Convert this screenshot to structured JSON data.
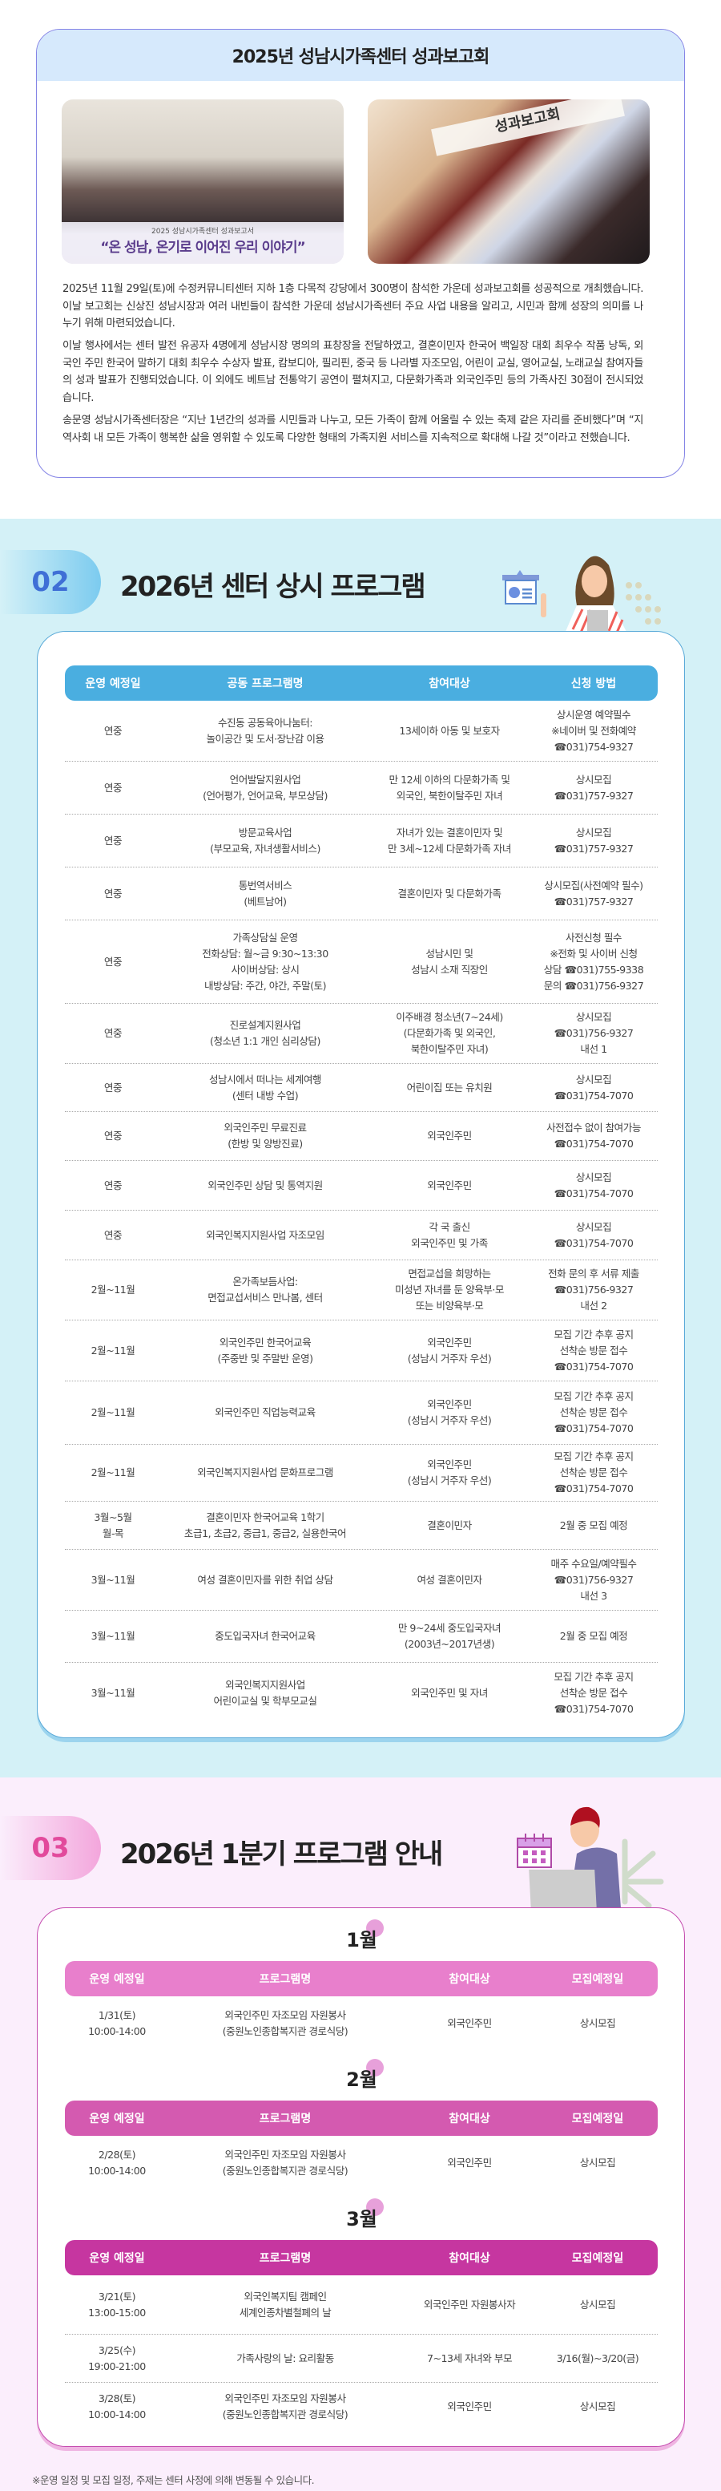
{
  "report": {
    "title": "2025년 성남시가족센터 성과보고회",
    "photo1_banner_small": "2025 성남시가족센터 성과보고서",
    "photo1_banner": "“온 성남, 온기로 이어진 우리 이야기”",
    "photo2_banner": "성과보고회",
    "paragraphs": [
      "2025년 11월 29일(토)에 수정커뮤니티센터 지하 1층 다목적 강당에서 300명이 참석한 가운데 성과보고회를 성공적으로 개최했습니다. 이날 보고회는 신상진 성남시장과 여러 내빈들이 참석한 가운데 성남시가족센터 주요 사업 내용을 알리고, 시민과 함께 성장의 의미를 나누기 위해 마련되었습니다.",
      "이날 행사에서는 센터 발전 유공자 4명에게 성남시장 명의의 표창장을 전달하였고, 결혼이민자 한국어 백일장 대회 최우수 작품 낭독, 외국인 주민 한국어 말하기 대회 최우수 수상자 발표, 캄보디아, 필리핀, 중국 등 나라별 자조모임, 어린이 교실, 영어교실, 노래교실 참여자들의 성과 발표가 진행되었습니다. 이 외에도 베트남 전통악기 공연이 펼쳐지고, 다문화가족과 외국인주민 등의 가족사진 30점이 전시되었습니다.",
      "송문영 성남시가족센터장은 “지난 1년간의 성과를 시민들과 나누고, 모든 가족이 함께 어울릴 수 있는 축제 같은 자리를 준비했다”며 “지역사회 내 모든 가족이 행복한 삶을 영위할 수 있도록 다양한 형태의 가족지원 서비스를 지속적으로 확대해 나갈 것”이라고 전했습니다."
    ]
  },
  "section2": {
    "number": "02",
    "title": "2026년 센터 상시 프로그램",
    "icon": "presentation-board-icon",
    "header_color": "#4aaee0",
    "headers": [
      "운영 예정일",
      "공동 프로그램명",
      "참여대상",
      "신청 방법"
    ],
    "rows": [
      [
        "연중",
        "수진동 공동육아나눔터:\n놀이공간 및 도서·장난감 이용",
        "13세이하 아동 및 보호자",
        "상시운영 예약필수\n※네이버 및 전화예약\n☎031)754-9327"
      ],
      [
        "연중",
        "언어발달지원사업\n(언어평가, 언어교육, 부모상담)",
        "만 12세 이하의 다문화가족 및\n외국인, 북한이탈주민 자녀",
        "상시모집\n☎031)757-9327"
      ],
      [
        "연중",
        "방문교육사업\n(부모교육, 자녀생활서비스)",
        "자녀가 있는 결혼이민자 및\n만 3세~12세 다문화가족 자녀",
        "상시모집\n☎031)757-9327"
      ],
      [
        "연중",
        "통번역서비스\n(베트남어)",
        "결혼이민자 및 다문화가족",
        "상시모집(사전예약 필수)\n☎031)757-9327"
      ],
      [
        "연중",
        "가족상담실 운영\n전화상담: 월~금 9:30~13:30\n사이버상담: 상시\n내방상담: 주간, 야간, 주말(토)",
        "성남시민 및\n성남시 소재 직장인",
        "사전신청 필수\n※전화 및 사이버 신청\n상담 ☎031)755-9338\n문의 ☎031)756-9327"
      ],
      [
        "연중",
        "진로설계지원사업\n(청소년 1:1 개인 심리상담)",
        "이주배경 청소년(7~24세)\n(다문화가족 및 외국인,\n북한이탈주민 자녀)",
        "상시모집\n☎031)756-9327\n내선 1"
      ],
      [
        "연중",
        "성남시에서 떠나는 세계여행\n(센터 내방 수업)",
        "어린이집 또는 유치원",
        "상시모집\n☎031)754-7070"
      ],
      [
        "연중",
        "외국인주민 무료진료\n(한방 및 양방진료)",
        "외국인주민",
        "사전접수 없이 참여가능\n☎031)754-7070"
      ],
      [
        "연중",
        "외국인주민 상담 및 통역지원",
        "외국인주민",
        "상시모집\n☎031)754-7070"
      ],
      [
        "연중",
        "외국인복지지원사업 자조모임",
        "각 국 출신\n외국인주민 및 가족",
        "상시모집\n☎031)754-7070"
      ],
      [
        "2월~11월",
        "온가족보듬사업:\n면접교섭서비스 만나봄, 센터",
        "면접교섭을 희망하는\n미성년 자녀를 둔 양육부·모\n또는 비양육부·모",
        "전화 문의 후 서류 제출\n☎031)756-9327\n내선 2"
      ],
      [
        "2월~11월",
        "외국인주민 한국어교육\n(주중반 및 주말반 운영)",
        "외국인주민\n(성남시 거주자 우선)",
        "모집 기간 추후 공지\n선착순 방문 접수\n☎031)754-7070"
      ],
      [
        "2월~11월",
        "외국인주민 직업능력교육",
        "외국인주민\n(성남시 거주자 우선)",
        "모집 기간 추후 공지\n선착순 방문 접수\n☎031)754-7070"
      ],
      [
        "2월~11월",
        "외국인복지지원사업 문화프로그램",
        "외국인주민\n(성남시 거주자 우선)",
        "모집 기간 추후 공지\n선착순 방문 접수\n☎031)754-7070"
      ],
      [
        "3월~5월\n월-목",
        "결혼이민자 한국어교육 1학기\n초급1, 초급2, 중급1, 중급2, 실용한국어",
        "결혼이민자",
        "2월 중 모집 예정"
      ],
      [
        "3월~11월",
        "여성 결혼이민자를 위한 취업 상담",
        "여성 결혼이민자",
        "매주 수요일/예약필수\n☎031)756-9327\n내선 3"
      ],
      [
        "3월~11월",
        "중도입국자녀 한국어교육",
        "만 9~24세 중도입국자녀\n(2003년~2017년생)",
        "2월 중 모집 예정"
      ],
      [
        "3월~11월",
        "외국인복지지원사업\n어린이교실 및 학부모교실",
        "외국인주민 및 자녀",
        "모집 기간 추후 공지\n선착순 방문 접수\n☎031)754-7070"
      ]
    ]
  },
  "section3": {
    "number": "03",
    "title": "2026년 1분기 프로그램 안내",
    "icon": "calendar-icon",
    "headers": [
      "운영 예정일",
      "프로그램명",
      "참여대상",
      "모집예정일"
    ],
    "months": [
      {
        "label": "1월",
        "header_color": "#e87fcc",
        "rows": [
          [
            "1/31(토)\n10:00-14:00",
            "외국인주민 자조모임 자원봉사\n(중원노인종합복지관 경로식당)",
            "외국인주민",
            "상시모집"
          ]
        ]
      },
      {
        "label": "2월",
        "header_color": "#d45ab0",
        "rows": [
          [
            "2/28(토)\n10:00-14:00",
            "외국인주민 자조모임 자원봉사\n(중원노인종합복지관 경로식당)",
            "외국인주민",
            "상시모집"
          ]
        ]
      },
      {
        "label": "3월",
        "header_color": "#c636a0",
        "rows": [
          [
            "3/21(토)\n13:00-15:00",
            "외국인복지팀 캠페인\n세계인종차별철폐의 날",
            "외국인주민 자원봉사자",
            "상시모집"
          ],
          [
            "3/25(수)\n19:00-21:00",
            "가족사랑의 날: 요리활동",
            "7~13세 자녀와 부모",
            "3/16(월)~3/20(금)"
          ],
          [
            "3/28(토)\n10:00-14:00",
            "외국인주민 자조모임 자원봉사\n(중원노인종합복지관 경로식당)",
            "외국인주민",
            "상시모집"
          ]
        ]
      }
    ],
    "footnote": "※운영 일정 및 모집 일정, 주제는 센터 사정에 의해 변동될 수 있습니다."
  }
}
